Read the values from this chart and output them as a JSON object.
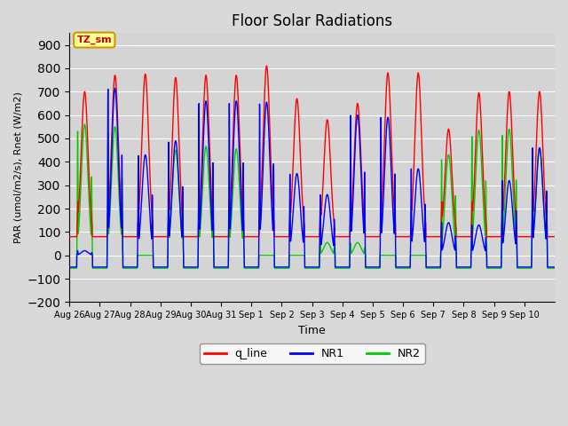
{
  "title": "Floor Solar Radiations",
  "xlabel": "Time",
  "ylabel": "PAR (umol/m2/s), Rnet (W/m2)",
  "ylim": [
    -200,
    950
  ],
  "yticks": [
    -200,
    -100,
    0,
    100,
    200,
    300,
    400,
    500,
    600,
    700,
    800,
    900
  ],
  "xtick_labels": [
    "Aug 26",
    "Aug 27",
    "Aug 28",
    "Aug 29",
    "Aug 30",
    "Aug 31",
    "Sep 1",
    "Sep 2",
    "Sep 3",
    "Sep 4",
    "Sep 5",
    "Sep 6",
    "Sep 7",
    "Sep 8",
    "Sep 9",
    "Sep 10"
  ],
  "background_color": "#d9d9d9",
  "plot_bg_color": "#d4d4d4",
  "grid_color": "#ffffff",
  "annotation_text": "TZ_sm",
  "annotation_bg": "#ffff99",
  "annotation_border": "#cc9900",
  "line_colors": {
    "q_line": "#ff0000",
    "NR1": "#0000ff",
    "NR2": "#00cc00"
  },
  "line_widths": {
    "q_line": 1.0,
    "NR1": 1.0,
    "NR2": 1.0
  },
  "n_days": 16,
  "baseline_q": 80,
  "night_nr1": -50,
  "night_nr2": -55,
  "title_fontsize": 12
}
